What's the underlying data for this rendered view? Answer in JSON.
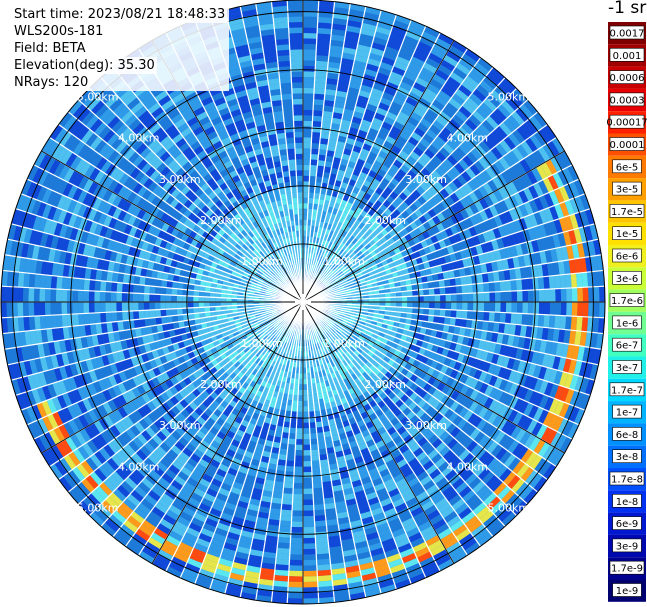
{
  "header": {
    "start_time": "Start time: 2023/08/21 18:48:33",
    "instrument": "WLS200s-181",
    "field": "Field: BETA",
    "elevation": "Elevation(deg): 35.30",
    "nrays": "NRays: 120"
  },
  "colorbar": {
    "unit_label": "-1 sr",
    "labels": [
      "0.0017",
      "0.001",
      "0.0006",
      "0.0003",
      "0.00017",
      "0.0001",
      "6e-5",
      "3e-5",
      "1.7e-5",
      "1e-5",
      "6e-6",
      "3e-6",
      "1.7e-6",
      "1e-6",
      "6e-7",
      "3e-7",
      "1.7e-7",
      "1e-7",
      "6e-8",
      "3e-8",
      "1.7e-8",
      "1e-8",
      "6e-9",
      "3e-9",
      "1.7e-9",
      "1e-9"
    ],
    "colors": [
      "#800000",
      "#a00000",
      "#c80000",
      "#e80000",
      "#ff2000",
      "#ff5000",
      "#ff7a00",
      "#ffa000",
      "#ffc400",
      "#ffe000",
      "#f0f020",
      "#c8ff38",
      "#a0ff60",
      "#70ff90",
      "#40ffc0",
      "#20f0e8",
      "#00d8ff",
      "#00b4ff",
      "#0090ff",
      "#0070ff",
      "#0050ff",
      "#0030f0",
      "#0018d0",
      "#0008b0",
      "#000090",
      "#000070"
    ]
  },
  "range_rings": {
    "labels": [
      "1.00km",
      "2.00km",
      "3.00km",
      "4.00km",
      "5.00km"
    ]
  },
  "ppi": {
    "max_range_km": 5.2,
    "colors": {
      "background": "#1e7ad9",
      "dark": "#1048d8",
      "mid": "#2f9ae8",
      "light": "#4ec0f0",
      "cyan": "#5ce6f0",
      "yellow": "#e6e64a",
      "orange": "#ff9a1a",
      "red": "#ff4a10",
      "ring_line": "#000000",
      "ray_gap": "#ffffff"
    }
  }
}
